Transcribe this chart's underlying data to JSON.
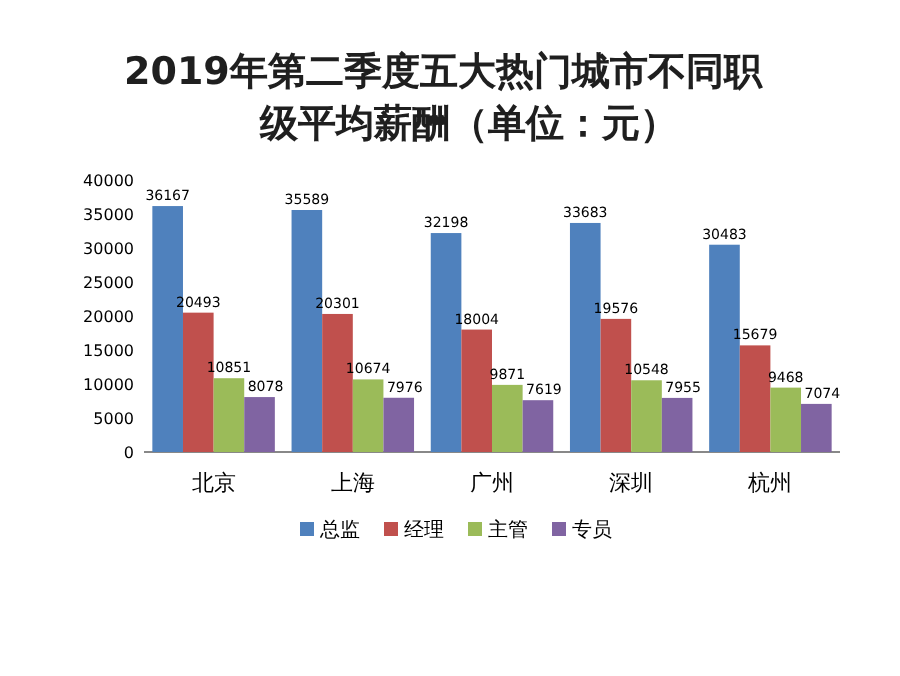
{
  "chart_data": {
    "type": "bar",
    "title": "2019年第二季度五大热门城市不同职级平均薪酬（单位：元）",
    "categories": [
      "北京",
      "上海",
      "广州",
      "深圳",
      "杭州"
    ],
    "series": [
      {
        "name": "总监",
        "color": "#4f81bd",
        "values": [
          36167,
          35589,
          32198,
          33683,
          30483
        ]
      },
      {
        "name": "经理",
        "color": "#c0504d",
        "values": [
          20493,
          20301,
          18004,
          19576,
          15679
        ]
      },
      {
        "name": "主管",
        "color": "#9bbb59",
        "values": [
          10851,
          10674,
          9871,
          10548,
          9468
        ]
      },
      {
        "name": "专员",
        "color": "#8064a2",
        "values": [
          8078,
          7976,
          7619,
          7955,
          7074
        ]
      }
    ],
    "ylim": [
      0,
      40000
    ],
    "yticks": [
      0,
      5000,
      10000,
      15000,
      20000,
      25000,
      30000,
      35000,
      40000
    ],
    "data_labels": true,
    "legend": "bottom",
    "grid": false
  }
}
